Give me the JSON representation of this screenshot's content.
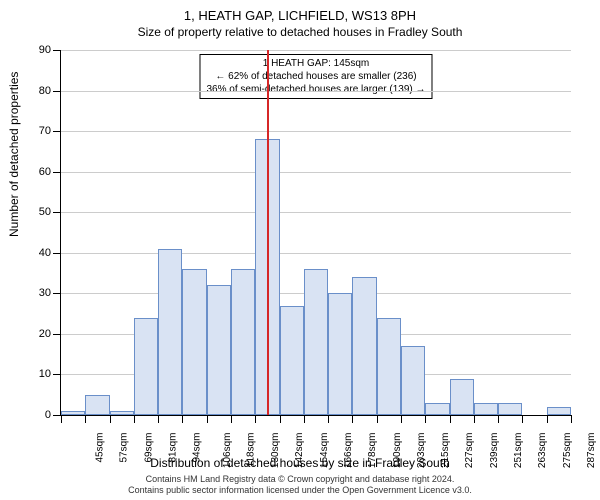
{
  "chart": {
    "type": "histogram",
    "title": "1, HEATH GAP, LICHFIELD, WS13 8PH",
    "subtitle": "Size of property relative to detached houses in Fradley South",
    "y_axis_title": "Number of detached properties",
    "x_axis_title": "Distribution of detached houses by size in Fradley South",
    "background_color": "#ffffff",
    "grid_color": "#cccccc",
    "bar_fill": "#d9e3f3",
    "bar_stroke": "#6a8fc9",
    "marker_color": "#d62728",
    "marker_x_value": 145,
    "annotation": {
      "line1": "1 HEATH GAP: 145sqm",
      "line2": "← 62% of detached houses are smaller (236)",
      "line3": "36% of semi-detached houses are larger (139) →"
    },
    "y_ticks": [
      0,
      10,
      20,
      30,
      40,
      50,
      60,
      70,
      80,
      90
    ],
    "y_max": 90,
    "x_labels": [
      "45sqm",
      "57sqm",
      "69sqm",
      "81sqm",
      "94sqm",
      "106sqm",
      "118sqm",
      "130sqm",
      "142sqm",
      "154sqm",
      "166sqm",
      "178sqm",
      "190sqm",
      "203sqm",
      "215sqm",
      "227sqm",
      "239sqm",
      "251sqm",
      "263sqm",
      "275sqm",
      "287sqm"
    ],
    "bars": [
      1,
      5,
      1,
      24,
      41,
      36,
      32,
      36,
      68,
      27,
      36,
      30,
      34,
      24,
      17,
      3,
      9,
      3,
      3,
      0,
      2
    ],
    "bar_count": 21,
    "footnote_line1": "Contains HM Land Registry data © Crown copyright and database right 2024.",
    "footnote_line2": "Contains public sector information licensed under the Open Government Licence v3.0."
  }
}
